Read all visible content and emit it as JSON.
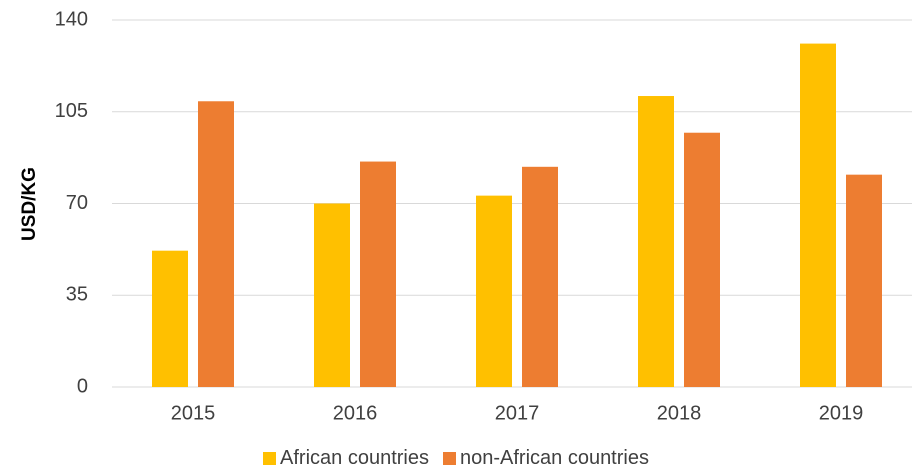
{
  "chart_data": {
    "type": "bar",
    "title": "",
    "xlabel": "",
    "ylabel": "USD/KG",
    "categories": [
      "2015",
      "2016",
      "2017",
      "2018",
      "2019"
    ],
    "series": [
      {
        "name": "African countries",
        "color": "#FFC000",
        "values": [
          52,
          70,
          73,
          111,
          131
        ]
      },
      {
        "name": "non-African countries",
        "color": "#ED7D31",
        "values": [
          109,
          86,
          84,
          97,
          81
        ]
      }
    ],
    "ylim": [
      0,
      140
    ],
    "yticks": [
      0,
      35,
      70,
      105,
      140
    ],
    "grid": true,
    "legend": "bottom"
  }
}
